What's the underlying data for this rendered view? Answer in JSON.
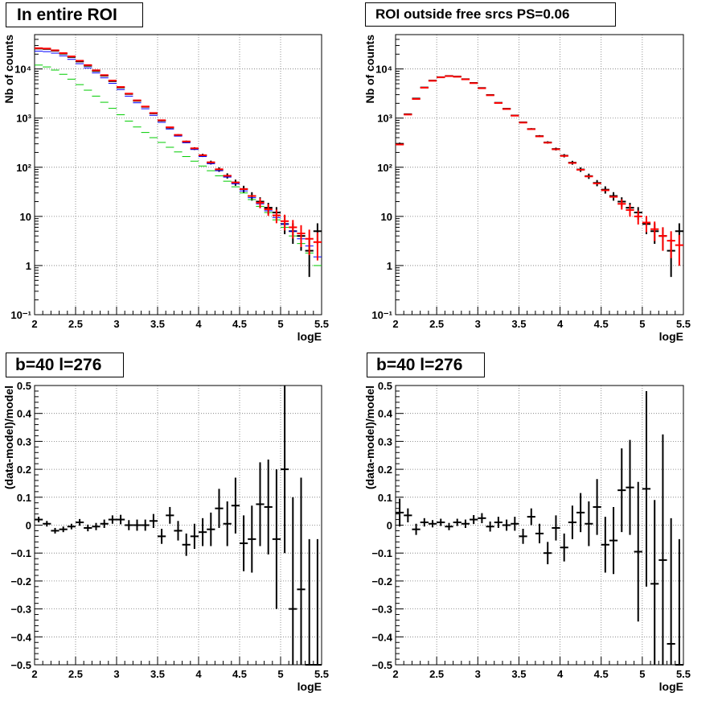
{
  "titles": [
    "In entire ROI",
    "ROI outside free srcs PS=0.06",
    "b=40 l=276",
    "b=40 l=276"
  ],
  "chart_data": [
    {
      "type": "scatter",
      "title": "In entire ROI",
      "xlabel": "logE",
      "ylabel": "Nb of counts",
      "xlim": [
        2,
        5.5
      ],
      "ylim": [
        0.1,
        50000
      ],
      "log_y": true,
      "grid": true,
      "x_ticks": [
        "2",
        "2.5",
        "3",
        "3.5",
        "4",
        "4.5",
        "5",
        "5.5"
      ],
      "y_ticks": [
        "10⁻¹",
        "1",
        "10",
        "10²",
        "10³",
        "10⁴"
      ],
      "x": [
        2.05,
        2.15,
        2.25,
        2.35,
        2.45,
        2.55,
        2.65,
        2.75,
        2.85,
        2.95,
        3.05,
        3.15,
        3.25,
        3.35,
        3.45,
        3.55,
        3.65,
        3.75,
        3.85,
        3.95,
        4.05,
        4.15,
        4.25,
        4.35,
        4.45,
        4.55,
        4.65,
        4.75,
        4.85,
        4.95,
        5.05,
        5.15,
        5.25,
        5.35,
        5.45
      ],
      "series": [
        {
          "color": "#000000",
          "style": "errorbar",
          "values": [
            26000,
            25500,
            23500,
            20500,
            17500,
            14200,
            11600,
            9100,
            7300,
            5650,
            4200,
            3100,
            2250,
            1700,
            1250,
            890,
            640,
            450,
            330,
            240,
            175,
            125,
            90,
            67,
            49,
            36,
            26,
            20,
            15,
            12,
            7,
            5,
            4,
            2,
            5
          ]
        },
        {
          "color": "#0000ff",
          "style": "step",
          "values": [
            23000,
            22500,
            21000,
            18500,
            15700,
            12800,
            10500,
            8300,
            6600,
            5100,
            3800,
            2800,
            2050,
            1550,
            1140,
            820,
            600,
            430,
            315,
            230,
            165,
            118,
            85,
            63,
            46,
            33,
            24,
            18,
            13,
            9.5,
            7,
            5,
            3.5,
            2.5,
            1.5
          ]
        },
        {
          "color": "#00cc00",
          "style": "step",
          "values": [
            12000,
            11000,
            9500,
            7800,
            6200,
            4800,
            3700,
            2800,
            2100,
            1580,
            1170,
            870,
            660,
            510,
            400,
            320,
            255,
            205,
            165,
            133,
            106,
            85,
            67,
            52,
            40,
            30,
            22,
            16,
            12,
            8.5,
            6,
            4,
            2.8,
            1.8,
            1.0
          ]
        },
        {
          "color": "#ff0000",
          "style": "step",
          "values": [
            26500,
            26000,
            24000,
            21000,
            18000,
            14700,
            12000,
            9400,
            7500,
            5800,
            4300,
            3150,
            2300,
            1720,
            1270,
            905,
            650,
            455,
            335,
            243,
            176,
            126,
            91,
            67,
            49,
            36,
            26,
            19,
            14,
            10.5,
            8,
            6,
            4.5,
            3.5,
            3.0
          ]
        }
      ]
    },
    {
      "type": "scatter",
      "title": "ROI outside free srcs PS=0.06",
      "xlabel": "logE",
      "ylabel": "Nb of counts",
      "xlim": [
        2,
        5.5
      ],
      "ylim": [
        0.1,
        50000
      ],
      "log_y": true,
      "grid": true,
      "x_ticks": [
        "2",
        "2.5",
        "3",
        "3.5",
        "4",
        "4.5",
        "5",
        "5.5"
      ],
      "y_ticks": [
        "10⁻¹",
        "1",
        "10",
        "10²",
        "10³",
        "10⁴"
      ],
      "x": [
        2.05,
        2.15,
        2.25,
        2.35,
        2.45,
        2.55,
        2.65,
        2.75,
        2.85,
        2.95,
        3.05,
        3.15,
        3.25,
        3.35,
        3.45,
        3.55,
        3.65,
        3.75,
        3.85,
        3.95,
        4.05,
        4.15,
        4.25,
        4.35,
        4.45,
        4.55,
        4.65,
        4.75,
        4.85,
        4.95,
        5.05,
        5.15,
        5.25,
        5.35,
        5.45
      ],
      "series": [
        {
          "color": "#000000",
          "style": "errorbar",
          "values": [
            300,
            1200,
            2500,
            4200,
            5800,
            6800,
            7200,
            7000,
            6200,
            5200,
            4100,
            2950,
            2050,
            1550,
            1130,
            820,
            600,
            430,
            320,
            235,
            172,
            124,
            90,
            66,
            48,
            35,
            26,
            20,
            15,
            12,
            7,
            5,
            4,
            2,
            5
          ]
        },
        {
          "color": "#ff0000",
          "style": "step",
          "values": [
            290,
            1180,
            2450,
            4150,
            5750,
            6750,
            7150,
            6950,
            6150,
            5150,
            4050,
            2920,
            2030,
            1530,
            1120,
            810,
            595,
            425,
            316,
            232,
            170,
            122,
            89,
            65,
            47,
            34,
            25,
            18,
            13.5,
            10,
            7.5,
            5.5,
            4,
            3.2,
            2.6
          ]
        }
      ]
    },
    {
      "type": "scatter",
      "title": "b=40 l=276",
      "xlabel": "logE",
      "ylabel": "(data-model)/model",
      "xlim": [
        2,
        5.5
      ],
      "ylim": [
        -0.5,
        0.5
      ],
      "grid": true,
      "x_ticks": [
        "2",
        "2.5",
        "3",
        "3.5",
        "4",
        "4.5",
        "5",
        "5.5"
      ],
      "y_ticks": [
        "−0.5",
        "−0.4",
        "−0.3",
        "−0.2",
        "−0.1",
        "0",
        "0.1",
        "0.2",
        "0.3",
        "0.4",
        "0.5"
      ],
      "x": [
        2.05,
        2.15,
        2.25,
        2.35,
        2.45,
        2.55,
        2.65,
        2.75,
        2.85,
        2.95,
        3.05,
        3.15,
        3.25,
        3.35,
        3.45,
        3.55,
        3.65,
        3.75,
        3.85,
        3.95,
        4.05,
        4.15,
        4.25,
        4.35,
        4.45,
        4.55,
        4.65,
        4.75,
        4.85,
        4.95,
        5.05,
        5.15,
        5.25,
        5.35,
        5.45
      ],
      "series": [
        {
          "color": "#000000",
          "style": "errorbar",
          "values": [
            0.02,
            0.005,
            -0.02,
            -0.015,
            -0.005,
            0.01,
            -0.01,
            -0.005,
            0.005,
            0.02,
            0.02,
            0.0,
            0.0,
            0.0,
            0.015,
            -0.04,
            0.035,
            -0.02,
            -0.07,
            -0.04,
            -0.025,
            -0.015,
            0.06,
            0.005,
            0.07,
            -0.065,
            -0.05,
            0.075,
            0.065,
            -0.05,
            0.2,
            -0.3,
            -0.23,
            -0.5,
            -0.5
          ],
          "errors": [
            0.01,
            0.01,
            0.01,
            0.01,
            0.01,
            0.012,
            0.012,
            0.013,
            0.015,
            0.015,
            0.017,
            0.018,
            0.02,
            0.02,
            0.025,
            0.027,
            0.03,
            0.035,
            0.04,
            0.045,
            0.05,
            0.06,
            0.07,
            0.08,
            0.1,
            0.1,
            0.12,
            0.15,
            0.17,
            0.25,
            0.3,
            0.4,
            0.4,
            0.45,
            0.45
          ]
        }
      ]
    },
    {
      "type": "scatter",
      "title": "b=40 l=276",
      "xlabel": "logE",
      "ylabel": "(data-model)/model",
      "xlim": [
        2,
        5.5
      ],
      "ylim": [
        -0.5,
        0.5
      ],
      "grid": true,
      "x_ticks": [
        "2",
        "2.5",
        "3",
        "3.5",
        "4",
        "4.5",
        "5",
        "5.5"
      ],
      "y_ticks": [
        "−0.5",
        "−0.4",
        "−0.3",
        "−0.2",
        "−0.1",
        "0",
        "0.1",
        "0.2",
        "0.3",
        "0.4",
        "0.5"
      ],
      "x": [
        2.05,
        2.15,
        2.25,
        2.35,
        2.45,
        2.55,
        2.65,
        2.75,
        2.85,
        2.95,
        3.05,
        3.15,
        3.25,
        3.35,
        3.45,
        3.55,
        3.65,
        3.75,
        3.85,
        3.95,
        4.05,
        4.15,
        4.25,
        4.35,
        4.45,
        4.55,
        4.65,
        4.75,
        4.85,
        4.95,
        5.05,
        5.15,
        5.25,
        5.35,
        5.45
      ],
      "series": [
        {
          "color": "#000000",
          "style": "errorbar",
          "values": [
            0.045,
            0.035,
            -0.015,
            0.01,
            0.005,
            0.01,
            -0.005,
            0.01,
            0.005,
            0.02,
            0.025,
            -0.005,
            0.01,
            0.0,
            0.005,
            -0.04,
            0.03,
            -0.03,
            -0.1,
            -0.01,
            -0.08,
            0.01,
            0.045,
            0.005,
            0.065,
            -0.07,
            -0.055,
            0.125,
            0.135,
            -0.095,
            0.13,
            -0.21,
            -0.125,
            -0.425,
            -0.5
          ],
          "errors": [
            0.05,
            0.025,
            0.02,
            0.015,
            0.013,
            0.013,
            0.013,
            0.013,
            0.015,
            0.016,
            0.018,
            0.018,
            0.02,
            0.02,
            0.025,
            0.027,
            0.03,
            0.035,
            0.04,
            0.045,
            0.05,
            0.06,
            0.07,
            0.08,
            0.1,
            0.1,
            0.12,
            0.15,
            0.17,
            0.25,
            0.35,
            0.3,
            0.45,
            0.45,
            0.45
          ]
        }
      ]
    }
  ]
}
